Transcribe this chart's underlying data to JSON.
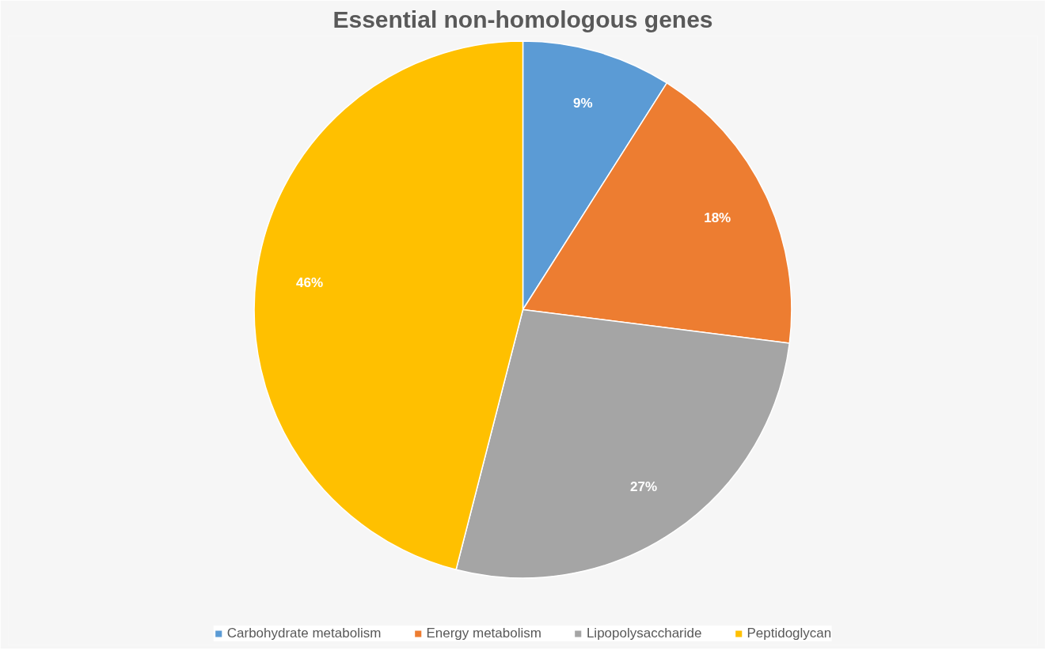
{
  "chart_data": {
    "type": "pie",
    "title": "Essential non-homologous genes",
    "categories": [
      "Carbohydrate metabolism",
      "Energy metabolism",
      "Lipopolysaccharide",
      "Peptidoglycan"
    ],
    "values": [
      9,
      18,
      27,
      46
    ],
    "colors": [
      "#5b9bd5",
      "#ed7d31",
      "#a5a5a5",
      "#ffc000"
    ],
    "value_labels": [
      "9%",
      "18%",
      "27%",
      "46%"
    ],
    "legend": "bottom"
  }
}
